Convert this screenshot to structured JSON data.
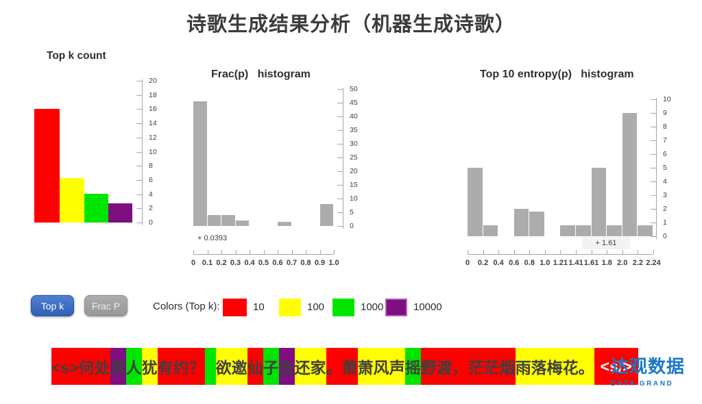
{
  "page_title": "诗歌生成结果分析（机器生成诗歌）",
  "chart_data": [
    {
      "type": "bar",
      "title": "Top k count",
      "categories": [
        "10",
        "100",
        "1000",
        "10000"
      ],
      "values": [
        16,
        6.3,
        4.1,
        2.7
      ],
      "colors": [
        "#FF0000",
        "#FFFF00",
        "#00E500",
        "#7D0F80"
      ],
      "ylim": [
        0,
        20
      ],
      "ystep": 2,
      "grid": false,
      "legend_position": "none"
    },
    {
      "type": "bar",
      "title": "Frac(p)   histogram",
      "bins": [
        "0-0.1",
        "0.1-0.2",
        "0.2-0.3",
        "0.3-0.4",
        "0.4-0.5",
        "0.5-0.6",
        "0.6-0.7",
        "0.7-0.8",
        "0.8-0.9",
        "0.9-1.0"
      ],
      "values": [
        45.5,
        4,
        4,
        2,
        0,
        0,
        1.5,
        0,
        0,
        8
      ],
      "bar_color": "#ACACAC",
      "xticklabels": [
        "0",
        "0.1",
        "0.2",
        "0.3",
        "0.4",
        "0.5",
        "0.6",
        "0.7",
        "0.8",
        "0.9",
        "1.0"
      ],
      "ylim": [
        0,
        50
      ],
      "ystep": 5,
      "grid": false,
      "annotation": "+ 0.0393"
    },
    {
      "type": "bar",
      "title": "Top 10 entropy(p)   histogram",
      "bins": [
        "0-0.2",
        "0.2-0.4",
        "0.4-0.6",
        "0.6-0.8",
        "0.8-1.0",
        "1.0-1.21",
        "1.21-1.41",
        "1.41-1.61",
        "1.61-1.8",
        "1.8-2.0",
        "2.0-2.2",
        "2.2-2.24"
      ],
      "values": [
        5,
        0.8,
        0,
        2,
        1.8,
        0,
        0.8,
        0.8,
        5,
        0.8,
        9,
        0.8
      ],
      "bar_color": "#ACACAC",
      "xticklabels": [
        "0",
        "0.2",
        "0.4",
        "0.6",
        "0.8",
        "1.0",
        "1.21",
        "1.41",
        "1.61",
        "1.8",
        "2.0",
        "2.2",
        "2.24"
      ],
      "ylim": [
        0,
        10
      ],
      "ystep": 1,
      "grid": false,
      "annotation": "+ 1.61"
    }
  ],
  "controls": {
    "topk_button": "Top k",
    "fracp_button": "Frac P",
    "legend_label": "Colors (Top k):",
    "legend_items": [
      {
        "label": "10",
        "color": "#FF0000"
      },
      {
        "label": "100",
        "color": "#FFFF00"
      },
      {
        "label": "1000",
        "color": "#00E500"
      },
      {
        "label": "10000",
        "color": "#7D0F80"
      }
    ]
  },
  "token_bar": {
    "text_color": "#3F3F3F",
    "segments": [
      {
        "text": "<s>何处",
        "bg": "#FF0000"
      },
      {
        "text": "觅",
        "bg": "#7D0F80"
      },
      {
        "text": "人",
        "bg": "#00E500"
      },
      {
        "text": "犹",
        "bg": "#FFFF00"
      },
      {
        "text": "有约？",
        "bg": "#FF0000"
      },
      {
        "text": " ",
        "bg": "#00E500"
      },
      {
        "text": "欲邀",
        "bg": "#FFFF00"
      },
      {
        "text": "仙",
        "bg": "#FF0000"
      },
      {
        "text": "子",
        "bg": "#00E500"
      },
      {
        "text": "去",
        "bg": "#7D0F80"
      },
      {
        "text": "还家",
        "bg": "#FFFF00"
      },
      {
        "text": "。萧",
        "bg": "#FF0000"
      },
      {
        "text": "萧风声",
        "bg": "#FFFF00"
      },
      {
        "text": "摇",
        "bg": "#00E500"
      },
      {
        "text": "野渡，茫茫烟",
        "bg": "#FF0000"
      },
      {
        "text": "雨落梅花。",
        "bg": "#FFFF00"
      },
      {
        "text": "<s/>",
        "bg": "#FF0000",
        "fg": "#FFFFFF"
      }
    ]
  },
  "logo": {
    "cn": "达观数据",
    "en": "DATA GRAND",
    "color": "#1878C8"
  },
  "style_colors": {
    "axis": "#A6A6A6",
    "tick_text": "#3E3E3E",
    "annotation_box_bg": "#F3F3F3",
    "title_text": "#3B3B3B"
  }
}
